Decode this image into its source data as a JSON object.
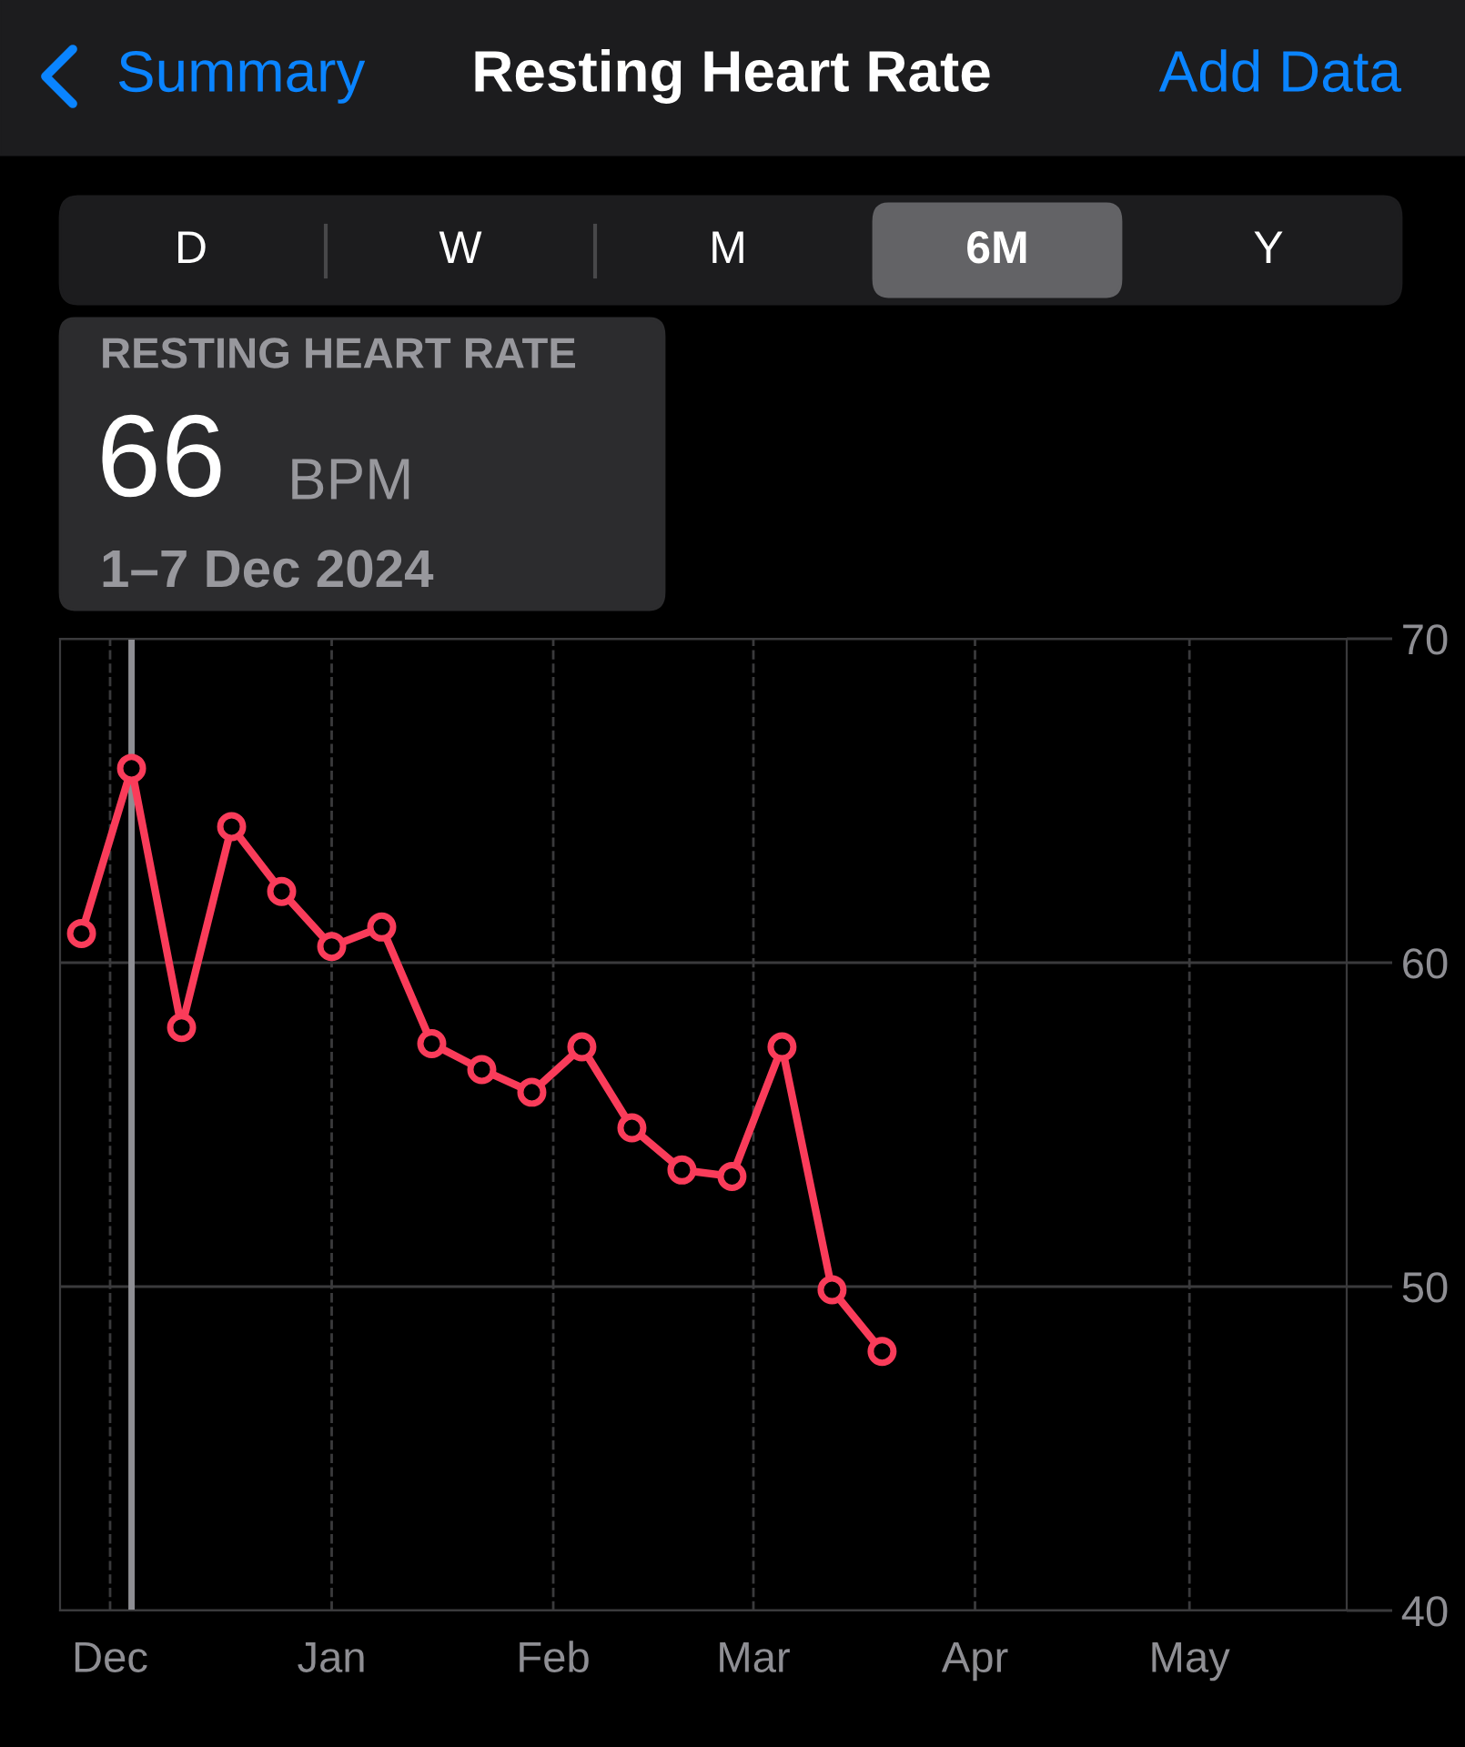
{
  "chart_data": {
    "type": "line",
    "title": "Resting Heart Rate",
    "x": [
      "2024-11-27",
      "2024-12-04",
      "2024-12-11",
      "2024-12-18",
      "2024-12-25",
      "2025-01-01",
      "2025-01-08",
      "2025-01-15",
      "2025-01-22",
      "2025-01-29",
      "2025-02-05",
      "2025-02-12",
      "2025-02-19",
      "2025-02-26",
      "2025-03-05",
      "2025-03-12",
      "2025-03-19"
    ],
    "series": [
      {
        "color": "#fa3c5a",
        "values": [
          60.9,
          66,
          58.0,
          64.2,
          62.2,
          60.5,
          61.1,
          57.5,
          56.7,
          56.0,
          57.4,
          54.9,
          53.6,
          53.4,
          57.4,
          49.9,
          48.0
        ]
      }
    ],
    "xlim": [
      "2024-11-24",
      "2025-05-23"
    ],
    "xticks": [
      {
        "value": "2024-12-01",
        "label": "Dec"
      },
      {
        "value": "2025-01-01",
        "label": "Jan"
      },
      {
        "value": "2025-02-01",
        "label": "Feb"
      },
      {
        "value": "2025-03-01",
        "label": "Mar"
      },
      {
        "value": "2025-04-01",
        "label": "Apr"
      },
      {
        "value": "2025-05-01",
        "label": "May"
      }
    ],
    "ylim": [
      40,
      70
    ],
    "yticks": [
      40,
      50,
      60,
      70
    ],
    "grid": true,
    "marker": "circle",
    "line_style": "solid",
    "ref_lines": [
      {
        "axis": "x",
        "value": "2024-12-04",
        "color": "#8e8e93"
      }
    ],
    "annotations": [
      "Summary",
      "Add Data",
      "D",
      "W",
      "M",
      "6M",
      "Y",
      "RESTING HEART RATE",
      "66",
      "BPM",
      "1–7 Dec 2024"
    ]
  }
}
